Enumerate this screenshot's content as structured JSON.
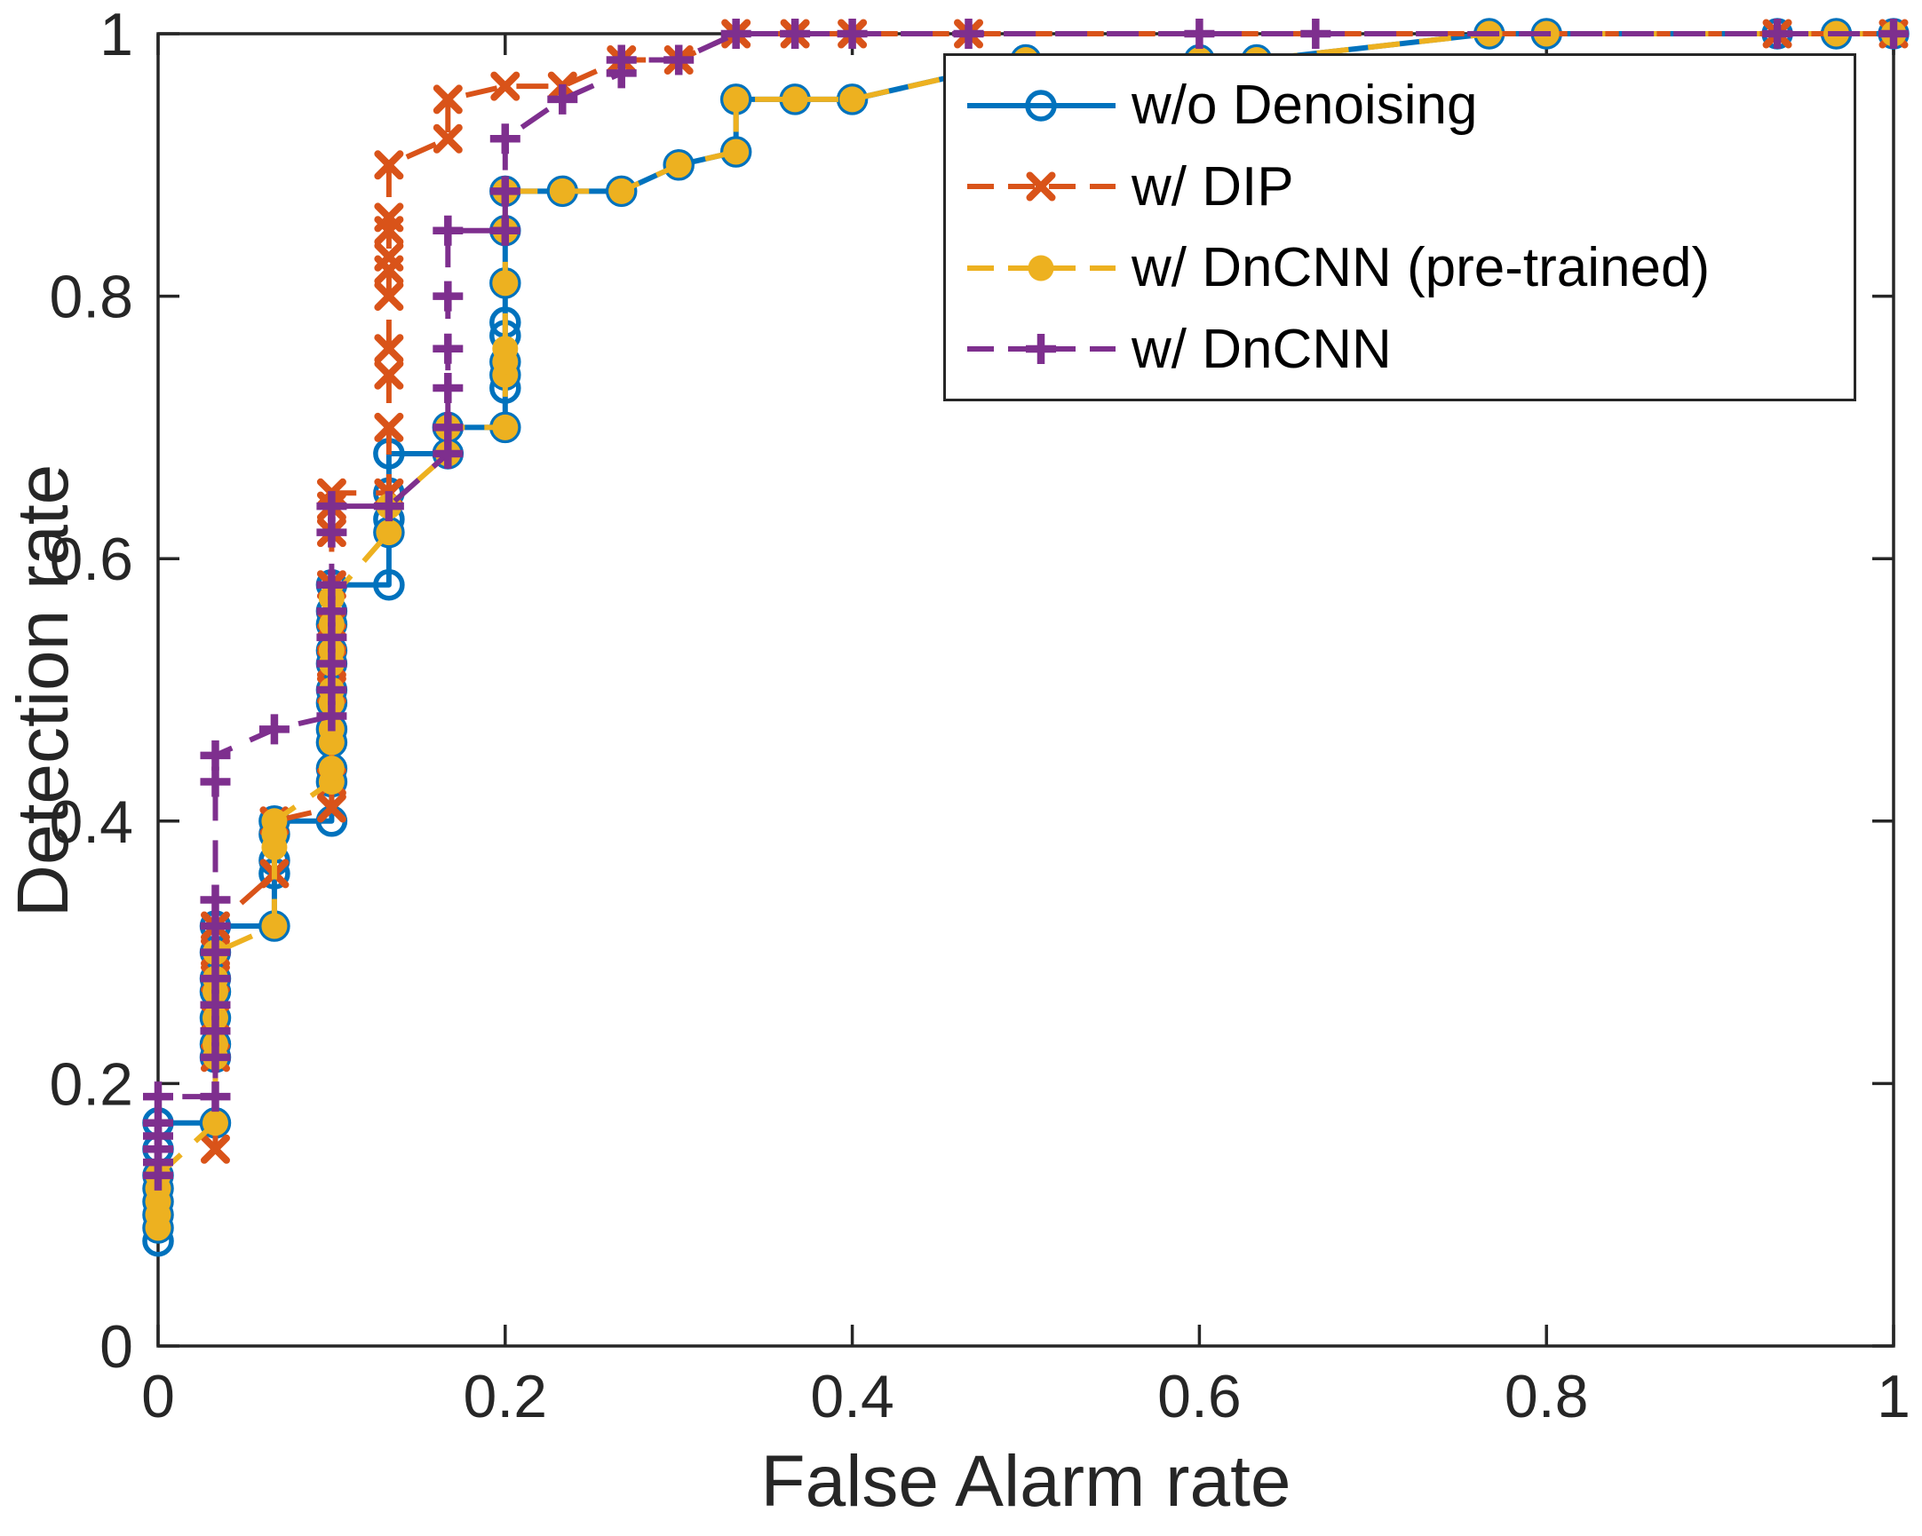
{
  "figure": {
    "background": "#ffffff",
    "frame_color": "#262626"
  },
  "chart_data": {
    "type": "line",
    "title": "",
    "xlabel": "False Alarm rate",
    "ylabel": "Detection rate",
    "xlim": [
      0,
      1
    ],
    "ylim": [
      0,
      1
    ],
    "xticks": [
      0,
      0.2,
      0.4,
      0.6,
      0.8,
      1
    ],
    "xtick_labels": [
      "0",
      "0.2",
      "0.4",
      "0.6",
      "0.8",
      "1"
    ],
    "yticks": [
      0,
      0.2,
      0.4,
      0.6,
      0.8,
      1
    ],
    "ytick_labels": [
      "0",
      "0.2",
      "0.4",
      "0.6",
      "0.8",
      "1"
    ],
    "grid": false,
    "legend": {
      "position": "top-right-inside",
      "border": true
    },
    "series": [
      {
        "name": "w/o Denoising",
        "color": "#0072BD",
        "line_style": "solid",
        "marker": "circle-open",
        "points": [
          [
            0,
            0.08
          ],
          [
            0,
            0.09
          ],
          [
            0,
            0.1
          ],
          [
            0,
            0.11
          ],
          [
            0,
            0.12
          ],
          [
            0,
            0.13
          ],
          [
            0,
            0.15
          ],
          [
            0,
            0.17
          ],
          [
            0.033,
            0.17
          ],
          [
            0.033,
            0.22
          ],
          [
            0.033,
            0.23
          ],
          [
            0.033,
            0.25
          ],
          [
            0.033,
            0.27
          ],
          [
            0.033,
            0.28
          ],
          [
            0.033,
            0.3
          ],
          [
            0.033,
            0.32
          ],
          [
            0.067,
            0.32
          ],
          [
            0.067,
            0.36
          ],
          [
            0.067,
            0.37
          ],
          [
            0.067,
            0.39
          ],
          [
            0.067,
            0.4
          ],
          [
            0.1,
            0.4
          ],
          [
            0.1,
            0.43
          ],
          [
            0.1,
            0.44
          ],
          [
            0.1,
            0.46
          ],
          [
            0.1,
            0.47
          ],
          [
            0.1,
            0.49
          ],
          [
            0.1,
            0.5
          ],
          [
            0.1,
            0.52
          ],
          [
            0.1,
            0.53
          ],
          [
            0.1,
            0.55
          ],
          [
            0.1,
            0.56
          ],
          [
            0.1,
            0.58
          ],
          [
            0.133,
            0.58
          ],
          [
            0.133,
            0.62
          ],
          [
            0.133,
            0.63
          ],
          [
            0.133,
            0.65
          ],
          [
            0.133,
            0.68
          ],
          [
            0.167,
            0.68
          ],
          [
            0.167,
            0.7
          ],
          [
            0.2,
            0.7
          ],
          [
            0.2,
            0.73
          ],
          [
            0.2,
            0.74
          ],
          [
            0.2,
            0.75
          ],
          [
            0.2,
            0.77
          ],
          [
            0.2,
            0.78
          ],
          [
            0.2,
            0.81
          ],
          [
            0.2,
            0.85
          ],
          [
            0.2,
            0.88
          ],
          [
            0.233,
            0.88
          ],
          [
            0.267,
            0.88
          ],
          [
            0.3,
            0.9
          ],
          [
            0.333,
            0.91
          ],
          [
            0.333,
            0.95
          ],
          [
            0.367,
            0.95
          ],
          [
            0.4,
            0.95
          ],
          [
            0.5,
            0.98
          ],
          [
            0.6,
            0.98
          ],
          [
            0.633,
            0.98
          ],
          [
            0.767,
            1
          ],
          [
            0.8,
            1
          ],
          [
            0.933,
            1
          ],
          [
            0.967,
            1
          ],
          [
            1,
            1
          ]
        ]
      },
      {
        "name": "w/ DIP",
        "color": "#D95319",
        "line_style": "dashed",
        "marker": "x",
        "points": [
          [
            0.033,
            0.15
          ],
          [
            0.033,
            0.22
          ],
          [
            0.033,
            0.25
          ],
          [
            0.033,
            0.28
          ],
          [
            0.033,
            0.3
          ],
          [
            0.033,
            0.32
          ],
          [
            0.067,
            0.36
          ],
          [
            0.067,
            0.4
          ],
          [
            0.1,
            0.41
          ],
          [
            0.1,
            0.43
          ],
          [
            0.1,
            0.5
          ],
          [
            0.1,
            0.52
          ],
          [
            0.1,
            0.54
          ],
          [
            0.1,
            0.55
          ],
          [
            0.1,
            0.58
          ],
          [
            0.1,
            0.62
          ],
          [
            0.1,
            0.64
          ],
          [
            0.1,
            0.65
          ],
          [
            0.133,
            0.65
          ],
          [
            0.133,
            0.7
          ],
          [
            0.133,
            0.74
          ],
          [
            0.133,
            0.76
          ],
          [
            0.133,
            0.8
          ],
          [
            0.133,
            0.82
          ],
          [
            0.133,
            0.83
          ],
          [
            0.133,
            0.85
          ],
          [
            0.133,
            0.86
          ],
          [
            0.133,
            0.9
          ],
          [
            0.167,
            0.92
          ],
          [
            0.167,
            0.95
          ],
          [
            0.2,
            0.96
          ],
          [
            0.233,
            0.96
          ],
          [
            0.267,
            0.98
          ],
          [
            0.3,
            0.98
          ],
          [
            0.333,
            1
          ],
          [
            0.367,
            1
          ],
          [
            0.4,
            1
          ],
          [
            0.467,
            1
          ],
          [
            0.933,
            1
          ],
          [
            1,
            1
          ]
        ]
      },
      {
        "name": "w/ DnCNN (pre-trained)",
        "color": "#EDB120",
        "line_style": "dashed",
        "marker": "circle-filled",
        "points": [
          [
            0,
            0.09
          ],
          [
            0,
            0.1
          ],
          [
            0,
            0.11
          ],
          [
            0,
            0.12
          ],
          [
            0,
            0.13
          ],
          [
            0.033,
            0.17
          ],
          [
            0.033,
            0.22
          ],
          [
            0.033,
            0.23
          ],
          [
            0.033,
            0.25
          ],
          [
            0.033,
            0.27
          ],
          [
            0.033,
            0.28
          ],
          [
            0.033,
            0.3
          ],
          [
            0.067,
            0.32
          ],
          [
            0.067,
            0.38
          ],
          [
            0.067,
            0.39
          ],
          [
            0.067,
            0.4
          ],
          [
            0.1,
            0.43
          ],
          [
            0.1,
            0.44
          ],
          [
            0.1,
            0.46
          ],
          [
            0.1,
            0.47
          ],
          [
            0.1,
            0.49
          ],
          [
            0.1,
            0.5
          ],
          [
            0.1,
            0.52
          ],
          [
            0.1,
            0.53
          ],
          [
            0.1,
            0.55
          ],
          [
            0.1,
            0.57
          ],
          [
            0.133,
            0.62
          ],
          [
            0.133,
            0.64
          ],
          [
            0.167,
            0.68
          ],
          [
            0.167,
            0.7
          ],
          [
            0.2,
            0.7
          ],
          [
            0.2,
            0.74
          ],
          [
            0.2,
            0.75
          ],
          [
            0.2,
            0.76
          ],
          [
            0.2,
            0.81
          ],
          [
            0.2,
            0.85
          ],
          [
            0.2,
            0.88
          ],
          [
            0.233,
            0.88
          ],
          [
            0.267,
            0.88
          ],
          [
            0.3,
            0.9
          ],
          [
            0.333,
            0.91
          ],
          [
            0.333,
            0.95
          ],
          [
            0.367,
            0.95
          ],
          [
            0.4,
            0.95
          ],
          [
            0.5,
            0.98
          ],
          [
            0.6,
            0.98
          ],
          [
            0.633,
            0.98
          ],
          [
            0.767,
            1
          ],
          [
            0.8,
            1
          ],
          [
            0.967,
            1
          ],
          [
            1,
            1
          ]
        ]
      },
      {
        "name": "w/ DnCNN",
        "color": "#7E2F8E",
        "line_style": "dashed",
        "marker": "plus",
        "points": [
          [
            0,
            0.13
          ],
          [
            0,
            0.14
          ],
          [
            0,
            0.15
          ],
          [
            0,
            0.16
          ],
          [
            0,
            0.17
          ],
          [
            0,
            0.19
          ],
          [
            0.033,
            0.19
          ],
          [
            0.033,
            0.22
          ],
          [
            0.033,
            0.24
          ],
          [
            0.033,
            0.26
          ],
          [
            0.033,
            0.28
          ],
          [
            0.033,
            0.3
          ],
          [
            0.033,
            0.32
          ],
          [
            0.033,
            0.34
          ],
          [
            0.033,
            0.43
          ],
          [
            0.033,
            0.45
          ],
          [
            0.067,
            0.47
          ],
          [
            0.1,
            0.48
          ],
          [
            0.1,
            0.5
          ],
          [
            0.1,
            0.52
          ],
          [
            0.1,
            0.54
          ],
          [
            0.1,
            0.56
          ],
          [
            0.1,
            0.58
          ],
          [
            0.1,
            0.62
          ],
          [
            0.1,
            0.64
          ],
          [
            0.133,
            0.64
          ],
          [
            0.167,
            0.68
          ],
          [
            0.167,
            0.7
          ],
          [
            0.167,
            0.73
          ],
          [
            0.167,
            0.76
          ],
          [
            0.167,
            0.8
          ],
          [
            0.167,
            0.85
          ],
          [
            0.2,
            0.85
          ],
          [
            0.2,
            0.88
          ],
          [
            0.2,
            0.92
          ],
          [
            0.233,
            0.95
          ],
          [
            0.267,
            0.97
          ],
          [
            0.267,
            0.98
          ],
          [
            0.3,
            0.98
          ],
          [
            0.333,
            1
          ],
          [
            0.367,
            1
          ],
          [
            0.4,
            1
          ],
          [
            0.467,
            1
          ],
          [
            0.6,
            1
          ],
          [
            0.667,
            1
          ],
          [
            0.933,
            1
          ],
          [
            1,
            1
          ]
        ]
      }
    ]
  }
}
